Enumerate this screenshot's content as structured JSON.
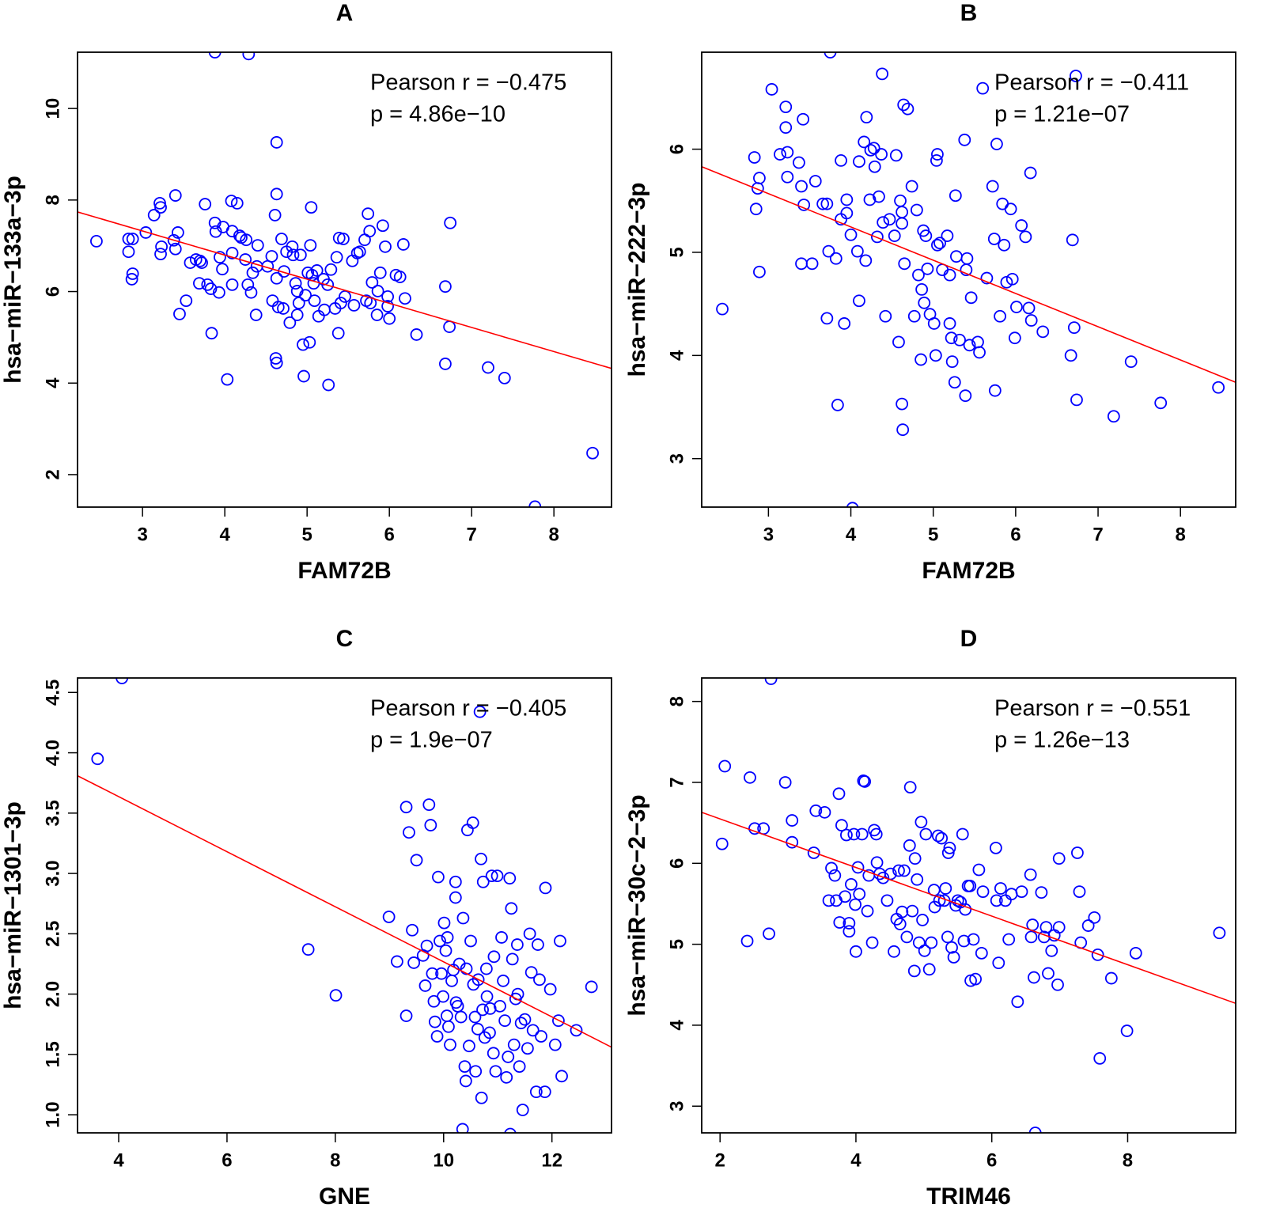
{
  "chart_data": [
    {
      "type": "scatter",
      "title": "A",
      "x_label": "FAM72B",
      "y_label": "hsa−miR−133a−3p",
      "annotations": [
        "Pearson r = −0.475",
        "p = 4.86e−10"
      ],
      "color": "#0000ff",
      "xlim": [
        2.21,
        8.7
      ],
      "ylim": [
        1.29,
        11.23
      ],
      "xticks": [
        3,
        4,
        5,
        6,
        7,
        8
      ],
      "yticks": [
        2,
        4,
        6,
        8,
        10
      ],
      "fit": {
        "color": "#ff0000",
        "x": [
          2.21,
          8.7
        ],
        "y": [
          7.74,
          4.32
        ]
      },
      "x": [
        2.44,
        2.83,
        2.88,
        2.83,
        2.88,
        2.87,
        3.04,
        3.14,
        3.21,
        3.22,
        3.23,
        3.22,
        3.38,
        3.4,
        3.43,
        3.4,
        3.45,
        3.53,
        3.58,
        3.65,
        3.7,
        3.72,
        3.69,
        3.76,
        3.79,
        3.83,
        3.84,
        3.88,
        3.89,
        3.93,
        3.94,
        3.97,
        3.98,
        4.03,
        4.08,
        4.09,
        4.09,
        4.09,
        4.15,
        4.18,
        4.2,
        4.26,
        4.25,
        4.28,
        4.32,
        4.34,
        4.39,
        4.38,
        4.4,
        4.52,
        4.57,
        4.58,
        4.61,
        4.63,
        4.63,
        4.63,
        4.62,
        4.63,
        4.65,
        4.69,
        4.71,
        4.72,
        4.75,
        4.79,
        4.82,
        4.83,
        4.86,
        4.88,
        4.88,
        4.9,
        4.92,
        4.95,
        4.96,
        4.98,
        5.01,
        5.03,
        5.05,
        5.04,
        5.06,
        5.08,
        5.09,
        5.12,
        5.14,
        5.2,
        5.21,
        5.25,
        5.26,
        5.29,
        5.34,
        5.36,
        5.38,
        5.39,
        5.41,
        5.44,
        5.46,
        5.55,
        5.57,
        5.61,
        5.64,
        5.7,
        5.72,
        5.74,
        5.76,
        5.77,
        5.79,
        5.85,
        5.86,
        5.89,
        5.92,
        5.95,
        5.98,
        5.98,
        6.0,
        6.08,
        6.13,
        6.17,
        6.19,
        6.33,
        6.68,
        6.68,
        6.73,
        6.74,
        7.2,
        7.4,
        7.77,
        8.47,
        3.88,
        4.29
      ],
      "y": [
        7.1,
        7.15,
        7.15,
        6.87,
        6.39,
        6.27,
        7.29,
        7.67,
        7.93,
        7.84,
        6.98,
        6.82,
        7.12,
        8.1,
        7.29,
        6.93,
        5.51,
        5.8,
        6.63,
        6.7,
        6.67,
        6.63,
        6.18,
        7.91,
        6.15,
        6.06,
        5.09,
        7.5,
        7.31,
        5.98,
        6.75,
        6.49,
        7.41,
        4.08,
        7.98,
        7.32,
        6.84,
        6.15,
        7.93,
        7.22,
        7.18,
        7.13,
        6.7,
        6.15,
        5.98,
        6.41,
        6.55,
        5.49,
        7.01,
        6.55,
        6.77,
        5.8,
        7.67,
        9.26,
        8.13,
        6.29,
        4.54,
        4.44,
        5.66,
        7.15,
        5.63,
        6.44,
        6.87,
        5.32,
        6.98,
        6.8,
        6.18,
        5.49,
        6.01,
        5.75,
        6.8,
        4.84,
        4.15,
        5.92,
        6.41,
        4.89,
        7.84,
        7.01,
        6.36,
        6.18,
        5.8,
        6.46,
        5.46,
        6.27,
        5.6,
        6.15,
        3.96,
        6.48,
        5.63,
        6.75,
        5.09,
        7.17,
        5.75,
        7.15,
        5.89,
        6.67,
        5.7,
        6.84,
        6.87,
        7.13,
        5.8,
        7.7,
        7.32,
        5.75,
        6.2,
        5.49,
        6.01,
        6.41,
        7.44,
        6.98,
        5.89,
        5.68,
        5.41,
        6.36,
        6.32,
        7.03,
        5.85,
        5.06,
        6.11,
        4.42,
        5.23,
        7.5,
        4.34,
        4.11,
        1.3,
        2.47,
        11.23,
        11.19
      ]
    },
    {
      "type": "scatter",
      "title": "B",
      "x_label": "FAM72B",
      "y_label": "hsa−miR−222−3p",
      "annotations": [
        "Pearson r = −0.411",
        "p = 1.21e−07"
      ],
      "color": "#0000ff",
      "xlim": [
        2.19,
        8.67
      ],
      "ylim": [
        2.53,
        6.94
      ],
      "xticks": [
        3,
        4,
        5,
        6,
        7,
        8
      ],
      "yticks": [
        3,
        4,
        5,
        6
      ],
      "fit": {
        "color": "#ff0000",
        "x": [
          2.19,
          8.67
        ],
        "y": [
          5.83,
          3.74
        ]
      },
      "x": [
        2.44,
        2.83,
        2.85,
        2.87,
        2.89,
        2.89,
        3.04,
        3.14,
        3.21,
        3.21,
        3.23,
        3.23,
        3.37,
        3.4,
        3.42,
        3.43,
        3.4,
        3.53,
        3.57,
        3.66,
        3.71,
        3.71,
        3.75,
        3.73,
        3.82,
        3.84,
        3.88,
        3.88,
        3.92,
        3.95,
        3.95,
        4.0,
        4.02,
        4.08,
        4.1,
        4.1,
        4.16,
        4.19,
        4.18,
        4.23,
        4.24,
        4.28,
        4.29,
        4.32,
        4.34,
        4.37,
        4.38,
        4.39,
        4.42,
        4.47,
        4.53,
        4.55,
        4.58,
        4.6,
        4.62,
        4.62,
        4.62,
        4.63,
        4.64,
        4.65,
        4.69,
        4.74,
        4.77,
        4.8,
        4.82,
        4.85,
        4.86,
        4.88,
        4.89,
        4.91,
        4.93,
        4.96,
        5.01,
        5.03,
        5.05,
        5.04,
        5.05,
        5.08,
        5.11,
        5.17,
        5.2,
        5.2,
        5.22,
        5.23,
        5.26,
        5.27,
        5.28,
        5.32,
        5.38,
        5.39,
        5.4,
        5.41,
        5.44,
        5.46,
        5.54,
        5.56,
        5.6,
        5.65,
        5.72,
        5.74,
        5.75,
        5.77,
        5.81,
        5.84,
        5.86,
        5.89,
        5.94,
        5.96,
        5.99,
        6.01,
        6.07,
        6.12,
        6.16,
        6.18,
        6.19,
        6.33,
        6.67,
        6.69,
        6.71,
        6.73,
        6.74,
        7.19,
        7.4,
        7.76,
        8.46
      ],
      "y": [
        4.45,
        5.92,
        5.42,
        5.62,
        5.72,
        4.81,
        6.58,
        5.95,
        6.41,
        6.21,
        5.97,
        5.73,
        5.87,
        5.64,
        6.29,
        5.46,
        4.89,
        4.89,
        5.69,
        5.47,
        5.47,
        4.36,
        6.94,
        5.01,
        4.94,
        3.52,
        5.89,
        5.32,
        4.31,
        5.51,
        5.38,
        5.17,
        2.52,
        5.01,
        4.53,
        5.88,
        6.07,
        6.31,
        4.92,
        5.51,
        5.99,
        6.01,
        5.83,
        5.15,
        5.54,
        5.95,
        6.73,
        5.29,
        4.38,
        5.32,
        5.16,
        5.94,
        4.13,
        5.5,
        5.39,
        5.28,
        3.53,
        3.28,
        6.43,
        4.89,
        6.39,
        5.64,
        4.38,
        5.41,
        4.78,
        3.96,
        4.64,
        5.21,
        4.51,
        5.16,
        4.84,
        4.4,
        4.31,
        4.0,
        5.95,
        5.89,
        5.07,
        5.09,
        4.83,
        5.16,
        4.78,
        4.31,
        4.17,
        3.94,
        3.74,
        5.55,
        4.96,
        4.15,
        6.09,
        3.61,
        4.83,
        4.94,
        4.1,
        4.56,
        4.13,
        4.03,
        6.59,
        4.75,
        5.64,
        5.13,
        3.66,
        6.05,
        4.38,
        5.47,
        5.07,
        4.71,
        5.42,
        4.74,
        4.17,
        4.47,
        5.26,
        5.15,
        4.46,
        5.77,
        4.34,
        4.23,
        4.0,
        5.12,
        4.27,
        6.71,
        3.57,
        3.41,
        3.94,
        3.54,
        3.69
      ]
    },
    {
      "type": "scatter",
      "title": "C",
      "x_label": "GNE",
      "y_label": "hsa−miR−1301−3p",
      "annotations": [
        "Pearson r = −0.405",
        "p = 1.9e−07"
      ],
      "color": "#0000ff",
      "xlim": [
        3.24,
        13.1
      ],
      "ylim": [
        0.85,
        4.62
      ],
      "xticks": [
        4,
        6,
        8,
        10,
        12
      ],
      "yticks": [
        {
          "value": 1,
          "label": "1.0"
        },
        1.5,
        {
          "value": 2,
          "label": "2.0"
        },
        2.5,
        {
          "value": 3,
          "label": "3.0"
        },
        3.5,
        {
          "value": 4,
          "label": "4.0"
        },
        4.5
      ],
      "fit": {
        "color": "#ff0000",
        "x": [
          3.24,
          13.1
        ],
        "y": [
          3.81,
          1.56
        ]
      },
      "x": [
        3.61,
        4.06,
        7.5,
        8.01,
        8.99,
        9.14,
        9.31,
        9.36,
        9.31,
        9.42,
        9.45,
        9.5,
        9.62,
        9.66,
        9.69,
        9.73,
        9.76,
        9.79,
        9.82,
        9.84,
        9.88,
        9.9,
        9.93,
        9.96,
        9.99,
        10.01,
        10.04,
        10.06,
        10.09,
        10.12,
        10.07,
        10.15,
        10.18,
        10.22,
        10.22,
        10.23,
        10.26,
        10.29,
        10.32,
        10.35,
        10.36,
        10.39,
        10.41,
        10.42,
        10.44,
        10.47,
        10.5,
        10.54,
        10.55,
        10.58,
        10.59,
        10.63,
        10.64,
        10.69,
        10.7,
        10.72,
        10.73,
        10.76,
        10.79,
        10.8,
        10.85,
        10.86,
        10.89,
        10.92,
        10.93,
        10.96,
        10.99,
        11.04,
        11.07,
        11.1,
        11.13,
        11.16,
        11.19,
        11.22,
        11.23,
        11.25,
        11.27,
        11.3,
        11.33,
        11.36,
        11.37,
        11.4,
        11.43,
        11.46,
        11.5,
        11.55,
        11.59,
        11.62,
        11.65,
        11.71,
        11.74,
        11.77,
        11.8,
        11.87,
        11.88,
        11.97,
        12.06,
        12.12,
        12.15,
        12.18,
        12.45,
        12.73,
        10.67
      ],
      "y": [
        3.95,
        4.62,
        2.37,
        1.99,
        2.64,
        2.27,
        3.55,
        3.34,
        1.82,
        2.53,
        2.26,
        3.11,
        2.32,
        2.07,
        2.4,
        3.57,
        3.4,
        2.17,
        1.94,
        1.77,
        1.65,
        2.97,
        2.44,
        2.17,
        1.98,
        2.59,
        2.36,
        1.82,
        1.73,
        1.58,
        2.47,
        2.11,
        2.2,
        2.93,
        2.8,
        1.93,
        1.9,
        2.25,
        1.81,
        0.88,
        2.63,
        1.4,
        1.28,
        2.21,
        3.36,
        1.57,
        2.44,
        3.42,
        2.08,
        1.81,
        1.36,
        1.71,
        2.12,
        3.12,
        1.14,
        1.87,
        2.93,
        1.64,
        2.21,
        1.98,
        1.68,
        1.88,
        2.98,
        1.51,
        2.31,
        1.36,
        2.98,
        1.9,
        2.47,
        2.11,
        1.78,
        1.31,
        1.48,
        2.96,
        0.84,
        2.71,
        2.29,
        1.58,
        1.96,
        2.41,
        2.0,
        1.4,
        1.76,
        1.04,
        1.79,
        1.55,
        2.5,
        2.18,
        1.7,
        1.19,
        2.41,
        2.12,
        1.65,
        1.19,
        2.88,
        2.04,
        1.58,
        1.78,
        2.44,
        1.32,
        1.7,
        2.06,
        4.34
      ]
    },
    {
      "type": "scatter",
      "title": "D",
      "x_label": "TRIM46",
      "y_label": "hsa−miR−30c−2−3p",
      "annotations": [
        "Pearson r = −0.551",
        "p = 1.26e−13"
      ],
      "color": "#0000ff",
      "xlim": [
        1.73,
        9.59
      ],
      "ylim": [
        2.67,
        8.29
      ],
      "xticks": [
        2,
        4,
        6,
        8
      ],
      "yticks": [
        3,
        4,
        5,
        6,
        7,
        8
      ],
      "fit": {
        "color": "#ff0000",
        "x": [
          1.73,
          9.59
        ],
        "y": [
          6.63,
          4.27
        ]
      },
      "x": [
        2.03,
        2.07,
        2.4,
        2.44,
        2.51,
        2.64,
        2.72,
        2.75,
        2.96,
        3.06,
        3.06,
        3.38,
        3.41,
        3.54,
        3.6,
        3.64,
        3.69,
        3.71,
        3.75,
        3.76,
        3.79,
        3.84,
        3.86,
        3.9,
        3.9,
        3.93,
        3.97,
        3.99,
        4.0,
        4.03,
        4.05,
        4.09,
        4.11,
        4.13,
        4.17,
        4.19,
        4.24,
        4.27,
        4.3,
        4.31,
        4.35,
        4.4,
        4.46,
        4.51,
        4.56,
        4.6,
        4.63,
        4.65,
        4.68,
        4.71,
        4.75,
        4.79,
        4.8,
        4.83,
        4.86,
        4.87,
        4.9,
        4.93,
        4.96,
        4.98,
        5.01,
        5.03,
        5.08,
        5.11,
        5.15,
        5.16,
        5.21,
        5.23,
        5.26,
        5.3,
        5.32,
        5.35,
        5.36,
        5.38,
        5.41,
        5.44,
        5.47,
        5.5,
        5.54,
        5.57,
        5.59,
        5.61,
        5.65,
        5.68,
        5.69,
        5.73,
        5.76,
        5.81,
        5.85,
        5.87,
        6.06,
        6.07,
        6.1,
        6.13,
        6.2,
        6.25,
        6.29,
        6.38,
        6.44,
        6.57,
        6.58,
        6.6,
        6.62,
        6.64,
        6.73,
        6.77,
        6.8,
        6.83,
        6.88,
        6.92,
        6.97,
        6.99,
        6.99,
        7.26,
        7.29,
        7.31,
        7.42,
        7.51,
        7.56,
        7.59,
        7.76,
        7.99,
        8.12,
        9.35
      ],
      "y": [
        6.24,
        7.2,
        5.04,
        7.06,
        6.43,
        6.43,
        5.13,
        8.28,
        7.0,
        6.53,
        6.26,
        6.13,
        6.65,
        6.63,
        5.54,
        5.94,
        5.85,
        5.54,
        6.86,
        5.27,
        6.47,
        5.59,
        6.35,
        5.16,
        5.26,
        5.74,
        6.36,
        5.49,
        4.91,
        5.95,
        5.62,
        6.36,
        7.02,
        7.01,
        5.41,
        5.85,
        5.02,
        6.41,
        6.36,
        6.01,
        5.87,
        5.82,
        5.54,
        5.87,
        4.91,
        5.31,
        5.91,
        5.25,
        5.4,
        5.91,
        5.09,
        6.22,
        6.94,
        5.41,
        4.67,
        6.06,
        5.8,
        5.02,
        6.51,
        5.3,
        4.92,
        6.36,
        4.69,
        5.02,
        5.67,
        5.46,
        6.34,
        5.54,
        6.31,
        5.54,
        5.69,
        5.09,
        6.13,
        6.19,
        4.96,
        4.84,
        5.48,
        5.54,
        5.52,
        6.36,
        5.04,
        5.43,
        5.72,
        5.72,
        4.55,
        5.06,
        4.57,
        5.92,
        4.89,
        5.65,
        6.19,
        5.54,
        4.77,
        5.69,
        5.54,
        5.06,
        5.62,
        4.29,
        5.65,
        5.86,
        5.09,
        5.24,
        4.59,
        2.67,
        5.64,
        5.09,
        5.21,
        4.64,
        4.92,
        5.11,
        4.5,
        6.06,
        5.21,
        6.13,
        5.65,
        5.02,
        5.23,
        5.33,
        4.87,
        3.59,
        4.58,
        3.93,
        4.89,
        5.14
      ]
    }
  ]
}
